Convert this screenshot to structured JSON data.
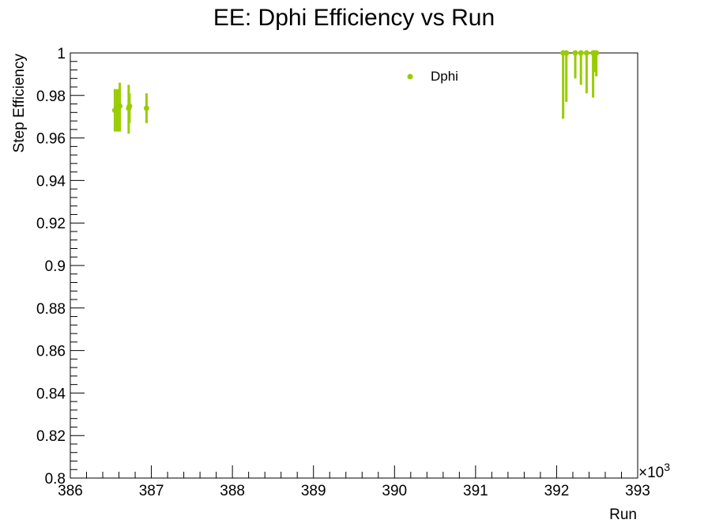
{
  "chart_data": {
    "type": "scatter",
    "title": "EE: Dphi Efficiency vs Run",
    "xlabel": "Run",
    "ylabel": "Step Efficiency",
    "x_multiplier_label": "×10",
    "x_multiplier_exponent": "3",
    "xlim": [
      386000,
      393000
    ],
    "ylim": [
      0.8,
      1.0
    ],
    "x_ticks": [
      386000,
      387000,
      388000,
      389000,
      390000,
      391000,
      392000,
      393000
    ],
    "x_tick_labels": [
      "386",
      "387",
      "388",
      "389",
      "390",
      "391",
      "392",
      "393"
    ],
    "y_ticks": [
      0.8,
      0.82,
      0.84,
      0.86,
      0.88,
      0.9,
      0.92,
      0.94,
      0.96,
      0.98,
      1.0
    ],
    "y_tick_labels": [
      "0.8",
      "0.82",
      "0.84",
      "0.86",
      "0.88",
      "0.9",
      "0.92",
      "0.94",
      "0.96",
      "0.98",
      "1"
    ],
    "grid": false,
    "legend_position": "top-right",
    "series": [
      {
        "name": "Dphi",
        "color": "#99cc00",
        "points": [
          {
            "x": 386550,
            "y": 0.973,
            "err_low": 0.01,
            "err_high": 0.01
          },
          {
            "x": 386580,
            "y": 0.974,
            "err_low": 0.011,
            "err_high": 0.009
          },
          {
            "x": 386610,
            "y": 0.975,
            "err_low": 0.012,
            "err_high": 0.011
          },
          {
            "x": 386720,
            "y": 0.974,
            "err_low": 0.012,
            "err_high": 0.011
          },
          {
            "x": 386730,
            "y": 0.975,
            "err_low": 0.008,
            "err_high": 0.006
          },
          {
            "x": 386940,
            "y": 0.974,
            "err_low": 0.007,
            "err_high": 0.007
          },
          {
            "x": 392080,
            "y": 1.0,
            "err_low": 0.031,
            "err_high": 0.0
          },
          {
            "x": 392120,
            "y": 1.0,
            "err_low": 0.023,
            "err_high": 0.0
          },
          {
            "x": 392230,
            "y": 1.0,
            "err_low": 0.012,
            "err_high": 0.0
          },
          {
            "x": 392300,
            "y": 1.0,
            "err_low": 0.015,
            "err_high": 0.0
          },
          {
            "x": 392370,
            "y": 1.0,
            "err_low": 0.019,
            "err_high": 0.0
          },
          {
            "x": 392450,
            "y": 1.0,
            "err_low": 0.021,
            "err_high": 0.0
          },
          {
            "x": 392470,
            "y": 1.0,
            "err_low": 0.009,
            "err_high": 0.0
          },
          {
            "x": 392490,
            "y": 1.0,
            "err_low": 0.011,
            "err_high": 0.0
          }
        ]
      }
    ]
  }
}
